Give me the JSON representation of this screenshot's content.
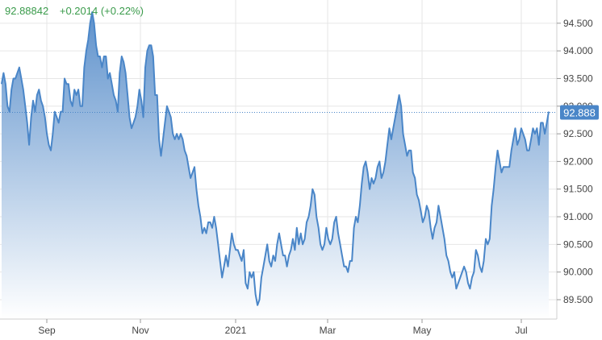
{
  "header": {
    "last_value": "92.88842",
    "change": "+0.2014 (+0.22%)"
  },
  "current_label": "92.888",
  "colors": {
    "line": "#4a86c8",
    "fill_top": "#5f92cc",
    "fill_bottom": "#ffffff",
    "ref_line": "#4a86c8",
    "badge": "#4a86c8",
    "gain": "#3a9b4b",
    "grid": "#e6e6e6"
  },
  "chart_data": {
    "type": "area",
    "title": "",
    "xlabel": "",
    "ylabel": "",
    "ylim": [
      89.15,
      94.92
    ],
    "grid": true,
    "y_ticks": [
      "89.500",
      "90.000",
      "90.500",
      "91.000",
      "91.500",
      "92.000",
      "92.500",
      "93.000",
      "93.500",
      "94.000",
      "94.500"
    ],
    "x_ticks": [
      "Sep",
      "Nov",
      "2021",
      "Mar",
      "May",
      "Jul"
    ],
    "current_value": 92.888,
    "values": [
      93.4,
      93.6,
      93.4,
      93.0,
      92.9,
      93.3,
      93.5,
      93.5,
      93.6,
      93.7,
      93.5,
      93.3,
      93.0,
      92.7,
      92.3,
      92.8,
      93.1,
      92.9,
      93.2,
      93.3,
      93.1,
      93.0,
      92.8,
      92.5,
      92.3,
      92.2,
      92.5,
      92.9,
      92.8,
      92.7,
      92.9,
      92.9,
      93.5,
      93.4,
      93.4,
      93.1,
      93.0,
      93.3,
      93.2,
      93.3,
      93.0,
      93.0,
      93.7,
      94.0,
      94.2,
      94.5,
      94.7,
      94.5,
      94.1,
      93.9,
      93.9,
      93.7,
      93.9,
      93.9,
      93.5,
      93.6,
      93.4,
      93.2,
      93.1,
      92.9,
      93.6,
      93.9,
      93.8,
      93.6,
      93.2,
      92.8,
      92.6,
      92.7,
      92.8,
      93.0,
      93.3,
      93.1,
      92.8,
      93.7,
      94.0,
      94.1,
      94.1,
      93.9,
      93.2,
      93.2,
      92.4,
      92.1,
      92.4,
      92.7,
      93.0,
      92.9,
      92.8,
      92.5,
      92.4,
      92.5,
      92.4,
      92.5,
      92.4,
      92.2,
      92.1,
      91.9,
      91.7,
      91.8,
      91.9,
      91.5,
      91.2,
      91.0,
      90.7,
      90.8,
      90.7,
      90.9,
      90.9,
      90.8,
      91.0,
      90.8,
      90.5,
      90.2,
      89.9,
      90.1,
      90.3,
      90.1,
      90.4,
      90.7,
      90.5,
      90.4,
      90.4,
      90.3,
      90.2,
      90.4,
      89.8,
      89.7,
      90.0,
      89.9,
      90.0,
      89.6,
      89.4,
      89.5,
      89.9,
      90.1,
      90.3,
      90.5,
      90.2,
      90.1,
      90.3,
      90.2,
      90.5,
      90.7,
      90.5,
      90.3,
      90.3,
      90.1,
      90.3,
      90.4,
      90.6,
      90.4,
      90.8,
      90.5,
      90.7,
      90.5,
      90.6,
      90.9,
      91.0,
      91.2,
      91.5,
      91.4,
      91.0,
      90.8,
      90.5,
      90.4,
      90.5,
      90.8,
      90.6,
      90.5,
      90.6,
      90.9,
      91.0,
      90.7,
      90.5,
      90.3,
      90.1,
      90.1,
      90.0,
      90.2,
      90.2,
      90.8,
      91.0,
      90.9,
      91.2,
      91.6,
      91.9,
      92.0,
      91.8,
      91.5,
      91.7,
      91.6,
      91.7,
      91.9,
      92.0,
      91.7,
      91.8,
      92.0,
      92.3,
      92.6,
      92.4,
      92.6,
      92.8,
      93.0,
      93.2,
      93.0,
      92.5,
      92.3,
      92.1,
      92.2,
      92.2,
      91.8,
      91.7,
      91.4,
      91.3,
      91.1,
      90.9,
      91.0,
      91.2,
      91.1,
      90.8,
      90.6,
      90.8,
      90.9,
      91.2,
      91.0,
      90.8,
      90.6,
      90.3,
      90.2,
      90.0,
      89.9,
      90.0,
      89.7,
      89.8,
      89.9,
      90.0,
      90.1,
      90.0,
      89.8,
      89.7,
      89.9,
      90.0,
      90.4,
      90.3,
      90.1,
      90.0,
      90.2,
      90.6,
      90.5,
      90.6,
      91.2,
      91.5,
      91.9,
      92.2,
      92.0,
      91.8,
      91.9,
      91.9,
      91.9,
      91.9,
      92.2,
      92.4,
      92.6,
      92.3,
      92.4,
      92.6,
      92.5,
      92.4,
      92.2,
      92.2,
      92.4,
      92.6,
      92.5,
      92.6,
      92.3,
      92.7,
      92.7,
      92.5,
      92.7,
      92.9
    ]
  }
}
